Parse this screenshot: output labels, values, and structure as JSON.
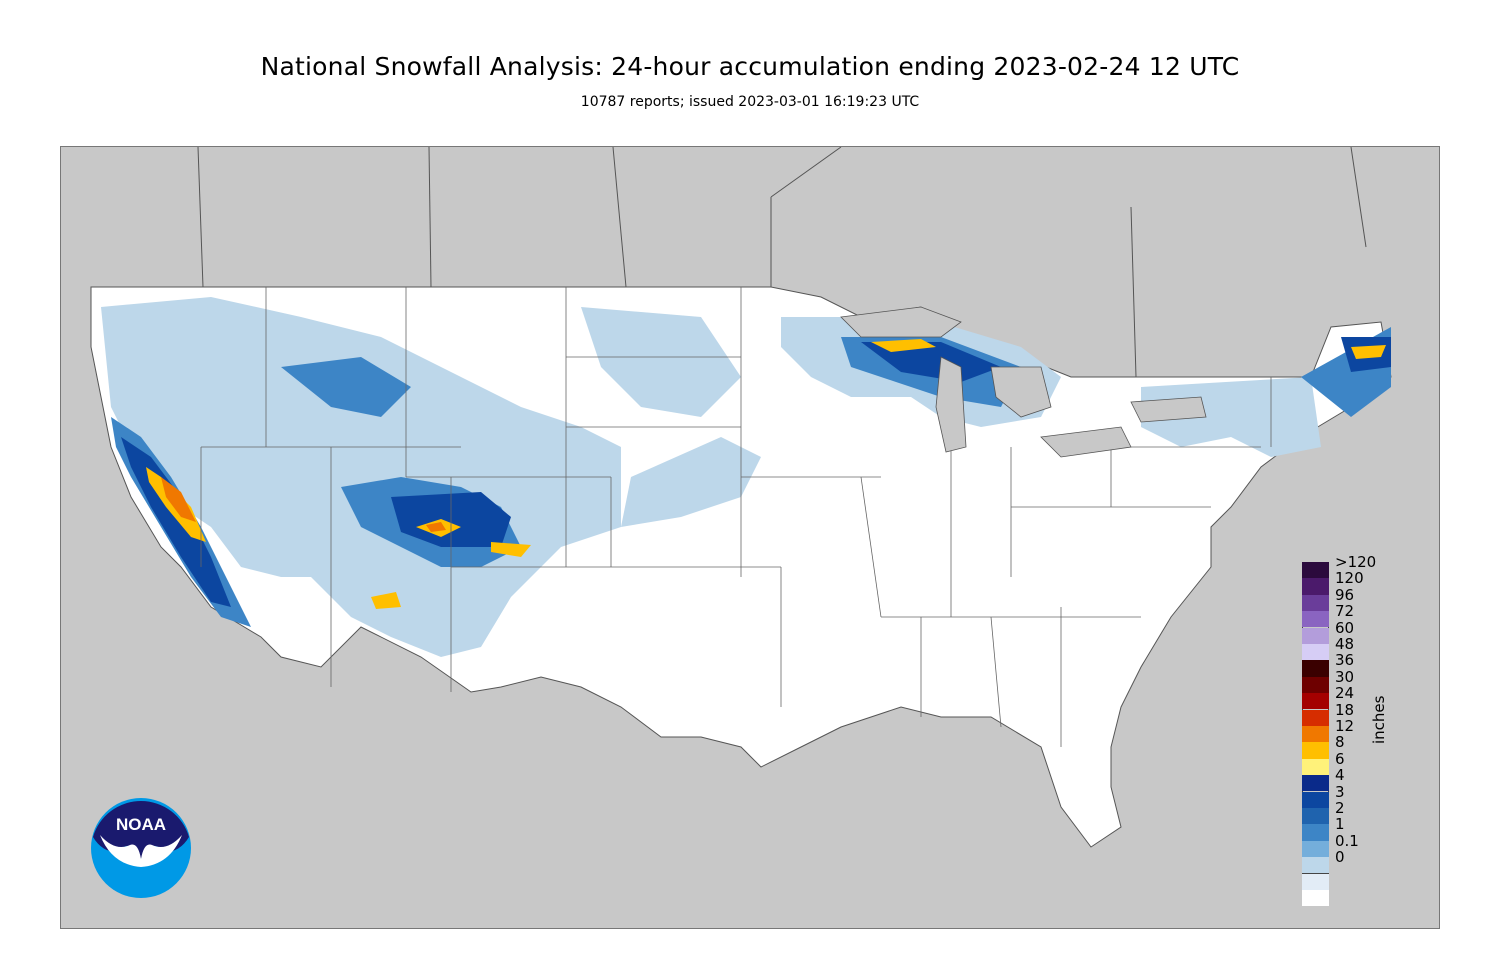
{
  "title": "National Snowfall Analysis: 24-hour accumulation ending 2023-02-24 12 UTC",
  "subtitle": "10787 reports; issued 2023-03-01 16:19:23 UTC",
  "legend": {
    "units": "inches",
    "levels": [
      {
        "label": ">120",
        "color": "#2b0a3d"
      },
      {
        "label": "120",
        "color": "#4b1a6b"
      },
      {
        "label": "96",
        "color": "#6a3d9a"
      },
      {
        "label": "72",
        "color": "#8a64c1"
      },
      {
        "label": "60",
        "color": "#b39ddb"
      },
      {
        "label": "48",
        "color": "#d6cdf5"
      },
      {
        "label": "36",
        "color": "#3a0000"
      },
      {
        "label": "30",
        "color": "#6e0000"
      },
      {
        "label": "24",
        "color": "#a40000"
      },
      {
        "label": "18",
        "color": "#d62d00"
      },
      {
        "label": "12",
        "color": "#f07800"
      },
      {
        "label": "8",
        "color": "#ffbf00"
      },
      {
        "label": "6",
        "color": "#fff27a"
      },
      {
        "label": "4",
        "color": "#0a2a8a"
      },
      {
        "label": "3",
        "color": "#0c46a0"
      },
      {
        "label": "2",
        "color": "#1f63ae"
      },
      {
        "label": "1",
        "color": "#3d85c6"
      },
      {
        "label": "0.1",
        "color": "#74aedb"
      },
      {
        "label": "0",
        "color": "#bdd7ea"
      }
    ],
    "bottom_colors": [
      "#e2ecf6",
      "#ffffff"
    ]
  },
  "logo": {
    "text": "NOAA",
    "icon": "noaa-logo-icon"
  },
  "colors": {
    "background_land_outside": "#c8c8c8",
    "conus_no_snow": "#ffffff",
    "snow_light": "#bdd7ea",
    "snow_medium": "#3d85c6",
    "snow_heavy": "#0c46a0",
    "snow_extreme": "#ffbf00"
  }
}
